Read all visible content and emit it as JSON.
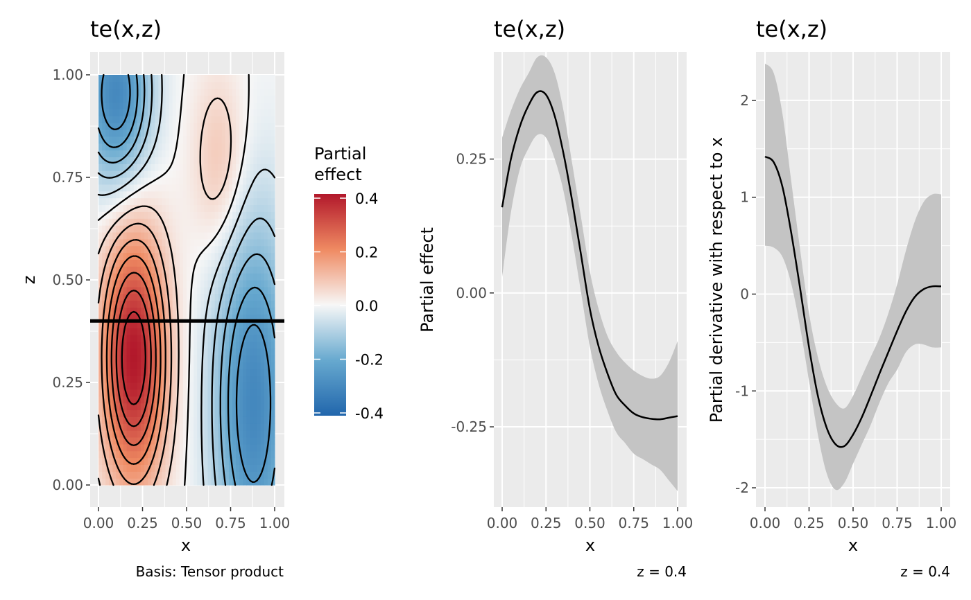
{
  "chart_data": [
    {
      "type": "heatmap",
      "title": "te(x,z)",
      "xlabel": "x",
      "ylabel": "z",
      "caption": "Basis: Tensor product",
      "xlim": [
        0,
        1
      ],
      "ylim": [
        0,
        1
      ],
      "x_ticks": [
        "0.00",
        "0.25",
        "0.50",
        "0.75",
        "1.00"
      ],
      "y_ticks": [
        "0.00",
        "0.25",
        "0.50",
        "0.75",
        "1.00"
      ],
      "legend": {
        "title": [
          "Partial",
          "effect"
        ],
        "ticks": [
          "0.4",
          "0.2",
          "0.0",
          "-0.2",
          "-0.4"
        ],
        "range": [
          -0.4,
          0.4
        ],
        "colors": {
          "high": "#b2182b",
          "mid": "#f7f7f7",
          "low": "#2166ac"
        }
      },
      "contour_interval": 0.05,
      "extrema": [
        {
          "x": 0.2,
          "z": 0.31,
          "value": 0.4
        },
        {
          "x": 0.69,
          "z": 0.78,
          "value": 0.1
        },
        {
          "x": 0.1,
          "z": 0.95,
          "value": -0.3
        },
        {
          "x": 0.88,
          "z": 0.2,
          "value": -0.3
        }
      ],
      "reference_line": {
        "z": 0.4
      }
    },
    {
      "type": "line",
      "title": "te(x,z)",
      "xlabel": "x",
      "ylabel": "Partial effect",
      "caption": "z = 0.4",
      "xlim": [
        0,
        1
      ],
      "ylim": [
        -0.4,
        0.45
      ],
      "x_ticks": [
        "0.00",
        "0.25",
        "0.50",
        "0.75",
        "1.00"
      ],
      "y_ticks": [
        "-0.25",
        "0.00",
        "0.25"
      ],
      "x": [
        0,
        0.05,
        0.1,
        0.15,
        0.2,
        0.25,
        0.3,
        0.35,
        0.4,
        0.45,
        0.5,
        0.55,
        0.6,
        0.65,
        0.7,
        0.75,
        0.8,
        0.85,
        0.9,
        0.95,
        1
      ],
      "estimate": [
        0.16,
        0.25,
        0.31,
        0.35,
        0.375,
        0.37,
        0.33,
        0.26,
        0.17,
        0.07,
        -0.03,
        -0.1,
        -0.15,
        -0.19,
        -0.21,
        -0.225,
        -0.232,
        -0.235,
        -0.236,
        -0.233,
        -0.23
      ],
      "lower": [
        0.03,
        0.15,
        0.23,
        0.27,
        0.295,
        0.29,
        0.25,
        0.19,
        0.1,
        0.0,
        -0.1,
        -0.17,
        -0.22,
        -0.26,
        -0.28,
        -0.3,
        -0.31,
        -0.32,
        -0.33,
        -0.35,
        -0.37
      ],
      "upper": [
        0.29,
        0.34,
        0.38,
        0.41,
        0.44,
        0.44,
        0.41,
        0.34,
        0.24,
        0.14,
        0.04,
        -0.03,
        -0.08,
        -0.11,
        -0.13,
        -0.145,
        -0.155,
        -0.16,
        -0.155,
        -0.13,
        -0.09
      ]
    },
    {
      "type": "line",
      "title": "te(x,z)",
      "xlabel": "x",
      "ylabel": "Partial derivative with respect to x",
      "caption": "z = 0.4",
      "xlim": [
        0,
        1
      ],
      "ylim": [
        -2.2,
        2.5
      ],
      "x_ticks": [
        "0.00",
        "0.25",
        "0.50",
        "0.75",
        "1.00"
      ],
      "y_ticks": [
        "-2",
        "-1",
        "0",
        "1",
        "2"
      ],
      "x": [
        0,
        0.05,
        0.1,
        0.15,
        0.2,
        0.25,
        0.3,
        0.35,
        0.4,
        0.45,
        0.5,
        0.55,
        0.6,
        0.65,
        0.7,
        0.75,
        0.8,
        0.85,
        0.9,
        0.95,
        1
      ],
      "estimate": [
        1.42,
        1.36,
        1.1,
        0.62,
        0.05,
        -0.55,
        -1.05,
        -1.38,
        -1.55,
        -1.57,
        -1.45,
        -1.27,
        -1.05,
        -0.82,
        -0.6,
        -0.38,
        -0.18,
        -0.03,
        0.05,
        0.08,
        0.08
      ],
      "lower": [
        0.5,
        0.48,
        0.38,
        0.1,
        -0.35,
        -0.9,
        -1.45,
        -1.85,
        -2.02,
        -1.95,
        -1.75,
        -1.55,
        -1.35,
        -1.12,
        -0.92,
        -0.78,
        -0.6,
        -0.52,
        -0.52,
        -0.55,
        -0.55
      ],
      "upper": [
        2.38,
        2.28,
        1.85,
        1.15,
        0.45,
        -0.2,
        -0.65,
        -0.95,
        -1.12,
        -1.18,
        -1.05,
        -0.85,
        -0.65,
        -0.45,
        -0.2,
        0.1,
        0.45,
        0.75,
        0.95,
        1.03,
        1.03
      ]
    }
  ]
}
